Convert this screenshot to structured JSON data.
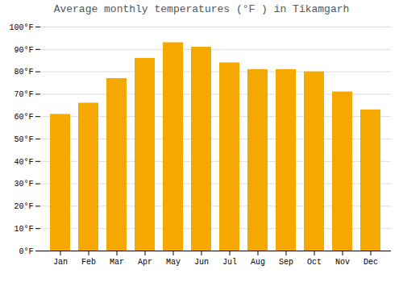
{
  "chart_data": {
    "type": "bar",
    "title": "Average monthly temperatures (°F ) in Tīkamgarh",
    "categories": [
      "Jan",
      "Feb",
      "Mar",
      "Apr",
      "May",
      "Jun",
      "Jul",
      "Aug",
      "Sep",
      "Oct",
      "Nov",
      "Dec"
    ],
    "values": [
      61,
      66,
      77,
      86,
      93,
      91,
      84,
      81,
      81,
      80,
      71,
      63
    ],
    "color": "#F5A800",
    "ylim": [
      0,
      100
    ],
    "yticks": [
      {
        "value": 0,
        "label": "0°F"
      },
      {
        "value": 10,
        "label": "10°F"
      },
      {
        "value": 20,
        "label": "20°F"
      },
      {
        "value": 30,
        "label": "30°F"
      },
      {
        "value": 40,
        "label": "40°F"
      },
      {
        "value": 50,
        "label": "50°F"
      },
      {
        "value": 60,
        "label": "60°F"
      },
      {
        "value": 70,
        "label": "70°F"
      },
      {
        "value": 80,
        "label": "80°F"
      },
      {
        "value": 90,
        "label": "90°F"
      },
      {
        "value": 100,
        "label": "100°F"
      }
    ],
    "grid": true
  }
}
